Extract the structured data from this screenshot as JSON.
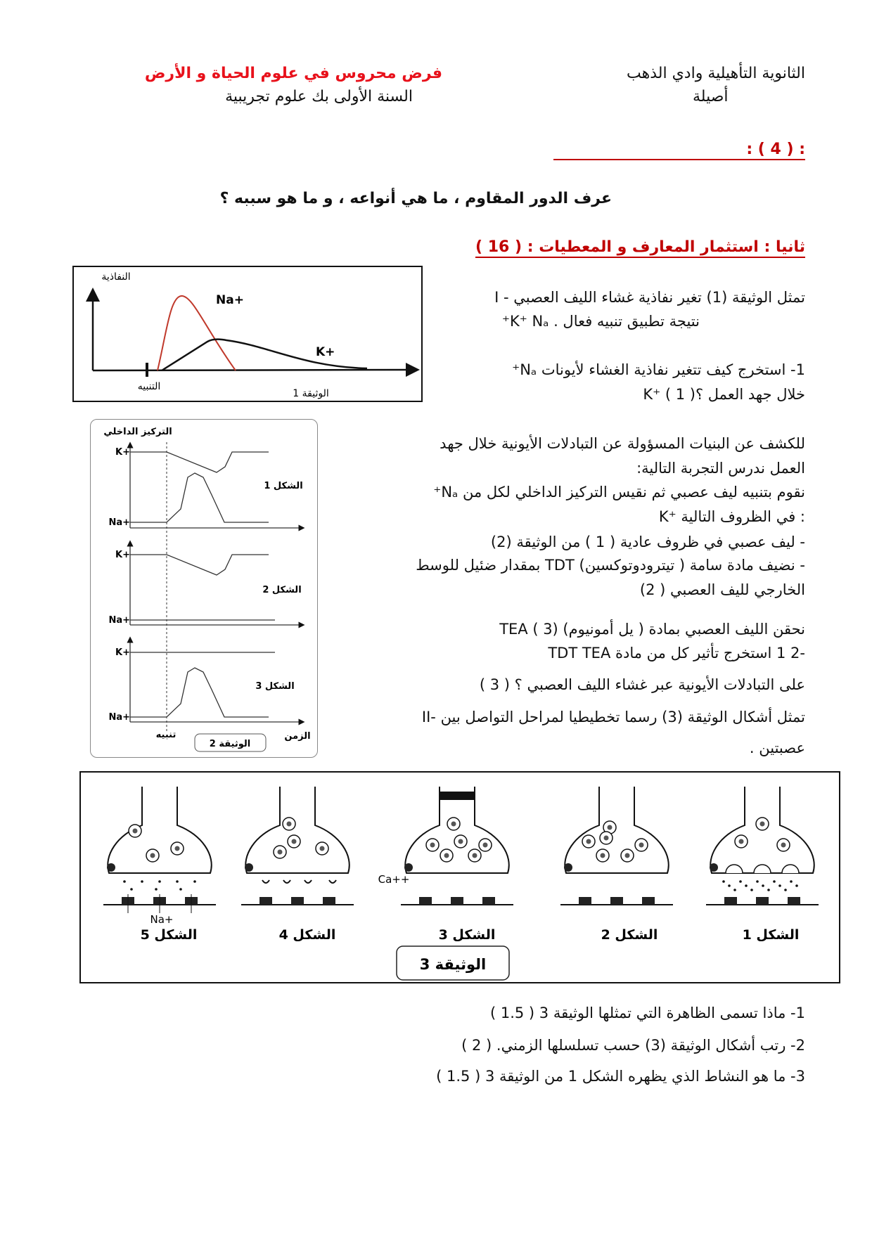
{
  "header": {
    "school": "الثانوية التأهيلية وادي الذهب",
    "track": "أصيلة",
    "exam_title": "فرض محروس في علوم الحياة و الأرض",
    "level": "السنة الأولى بك علوم تجريبية"
  },
  "part1": {
    "heading": ":                     ( 4 ) :",
    "question": "عرف الدور المقاوم ، ما هي أنواعه ، و ما هو سببه ؟"
  },
  "part2": {
    "heading": "ثانيا : استثمار المعارف و المعطيات : ( 16     )",
    "lines": [
      "I - تمثل الوثيقة (1) تغير نفاذية غشاء الليف العصبي",
      "نتيجة تطبيق تنبيه فعال . K⁺    Nₐ⁺",
      "1- استخرج كيف تتغير نفاذية الغشاء لأيونات Nₐ⁺",
      "K⁺  خلال جهد العمل ؟( 1    )",
      "للكشف عن البنيات المسؤولة عن التبادلات الأيونية خلال جهد",
      "العمل ندرس التجربة التالية:",
      "نقوم بتنبيه ليف عصبي ثم نقيس التركيز الداخلي لكل من Nₐ⁺",
      "K⁺  في الظروف التالية :",
      "- ليف عصبي في ظروف عادية (          1 ) من الوثيقة (2)",
      "- نضيف مادة سامة ( تيترودوتوكسين) TDT بمقدار ضئيل للوسط",
      "الخارجي لليف العصبي (          2)",
      "نحقن الليف العصبي بمادة (       يل أمونيوم) TEA (          3)",
      "-2                      1 استخرج تأثير كل من مادة TDT   TEA",
      "على التبادلات الأيونية عبر غشاء الليف العصبي ؟ ( 3    )",
      "II- تمثل أشكال الوثيقة (3) رسما تخطيطيا لمراحل التواصل بين",
      "عصبتين ."
    ],
    "questions": [
      "1- ماذا تسمى الظاهرة التي تمثلها الوثيقة 3  ( 1.5 )",
      "2- رتب أشكال الوثيقة (3) حسب تسلسلها الزمني.  ( 2    )",
      "3- ما هو النشاط الذي يظهره الشكل 1 من الوثيقة 3   ( 1.5    )"
    ]
  },
  "doc1": {
    "y_label": "النفاذية",
    "na_label": "Na+",
    "k_label": "K+",
    "stimulus_label": "التنبيه",
    "caption": "الوثيقة 1",
    "na_color": "#c0392b",
    "k_color": "#111111"
  },
  "doc2": {
    "y_label": "التركيز الداخلي",
    "k_label": "K+",
    "na_label": "Na+",
    "figures": [
      "الشكل 1",
      "الشكل 2",
      "الشكل 3"
    ],
    "stimulus_label": "تنبيه",
    "x_label": "الزمن",
    "caption": "الوثيقة 2"
  },
  "doc3": {
    "figures": [
      "الشكل 5",
      "الشكل 4",
      "الشكل 3",
      "الشكل 2",
      "الشكل 1"
    ],
    "na_label": "Na+",
    "ca_label": "Ca++",
    "caption": "الوثيقة 3"
  },
  "colors": {
    "title_red": "#e8111b",
    "heading_red": "#c00000"
  }
}
